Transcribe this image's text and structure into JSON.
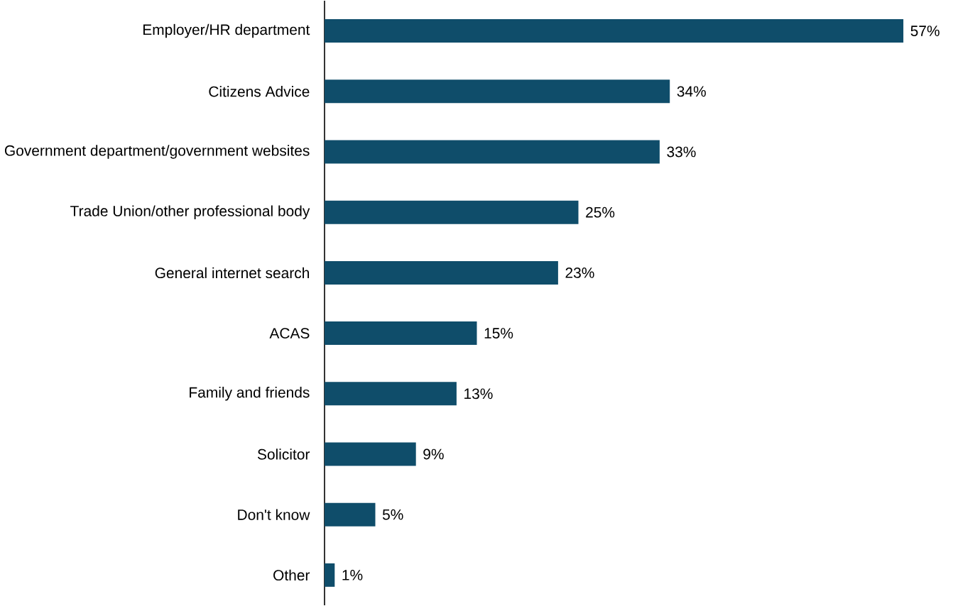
{
  "chart_data": {
    "type": "bar",
    "orientation": "horizontal",
    "categories": [
      "Employer/HR department",
      "Citizens Advice",
      "Government department/government websites",
      "Trade Union/other professional body",
      "General internet search",
      "ACAS",
      "Family and friends",
      "Solicitor",
      "Don't know",
      "Other"
    ],
    "values": [
      57,
      34,
      33,
      25,
      23,
      15,
      13,
      9,
      5,
      1
    ],
    "value_labels": [
      "57%",
      "34%",
      "33%",
      "25%",
      "23%",
      "15%",
      "13%",
      "9%",
      "5%",
      "1%"
    ],
    "color": "#0f4d6a",
    "tick_labels": "y"
  }
}
